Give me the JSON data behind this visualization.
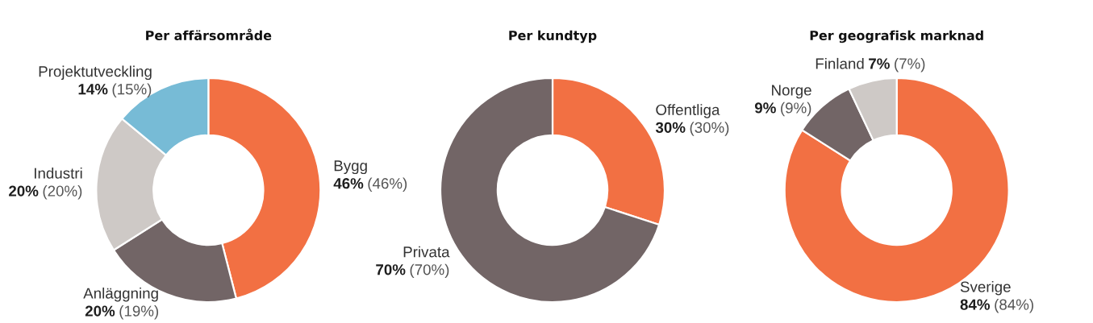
{
  "chart_data": [
    {
      "type": "donut",
      "title": "Per affärsområde",
      "categories": [
        "Bygg",
        "Anläggning",
        "Industri",
        "Projektutveckling"
      ],
      "values": [
        46,
        20,
        20,
        14
      ],
      "colors": [
        "#f27043",
        "#726566",
        "#cec9c6",
        "#77bbd6"
      ],
      "value_labels": [
        "46% (46%)",
        "20% (19%)",
        "20% (20%)",
        "14% (15%)"
      ]
    },
    {
      "type": "donut",
      "title": "Per kundtyp",
      "categories": [
        "Offentliga",
        "Privata"
      ],
      "values": [
        30,
        70
      ],
      "colors": [
        "#f27043",
        "#726566"
      ],
      "value_labels": [
        "30% (30%)",
        "70% (70%)"
      ]
    },
    {
      "type": "donut",
      "title": "Per geografisk marknad",
      "categories": [
        "Sverige",
        "Norge",
        "Finland"
      ],
      "values": [
        84,
        9,
        7
      ],
      "colors": [
        "#f27043",
        "#726566",
        "#cec9c6"
      ],
      "value_labels": [
        "84% (84%)",
        "9% (9%)",
        "7% (7%)"
      ]
    }
  ]
}
